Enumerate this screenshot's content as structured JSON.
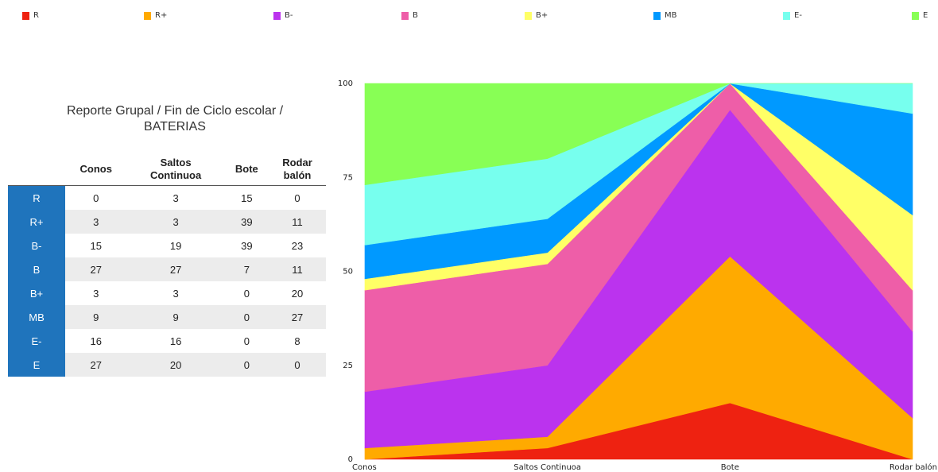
{
  "colors": {
    "R": "#ee2211",
    "R+": "#ffaa00",
    "B-": "#bb33ee",
    "B": "#ee5ea8",
    "B+": "#ffff66",
    "MB": "#0099ff",
    "E-": "#77ffee",
    "E": "#88ff55",
    "row_header_bg": "#1f74bc"
  },
  "legend": [
    "R",
    "R+",
    "B-",
    "B",
    "B+",
    "MB",
    "E-",
    "E"
  ],
  "table": {
    "title_line1": "Reporte Grupal / Fin de Ciclo escolar /",
    "title_line2": "BATERIAS",
    "headers": [
      [
        "Conos"
      ],
      [
        "Saltos",
        "Continuoa"
      ],
      [
        "Bote"
      ],
      [
        "Rodar",
        "balón"
      ]
    ],
    "rows": [
      {
        "label": "R",
        "values": [
          0,
          3,
          15,
          0
        ]
      },
      {
        "label": "R+",
        "values": [
          3,
          3,
          39,
          11
        ]
      },
      {
        "label": "B-",
        "values": [
          15,
          19,
          39,
          23
        ]
      },
      {
        "label": "B",
        "values": [
          27,
          27,
          7,
          11
        ]
      },
      {
        "label": "B+",
        "values": [
          3,
          3,
          0,
          20
        ]
      },
      {
        "label": "MB",
        "values": [
          9,
          9,
          0,
          27
        ]
      },
      {
        "label": "E-",
        "values": [
          16,
          16,
          0,
          8
        ]
      },
      {
        "label": "E",
        "values": [
          27,
          20,
          0,
          0
        ]
      }
    ]
  },
  "chart_data": {
    "type": "area",
    "stacked": true,
    "title": "",
    "xlabel": "",
    "ylabel": "",
    "categories": [
      "Conos",
      "Saltos Continuoa",
      "Bote",
      "Rodar balón"
    ],
    "ylim": [
      0,
      100
    ],
    "yticks": [
      0,
      25,
      50,
      75,
      100
    ],
    "grid": false,
    "legend_position": "top",
    "series": [
      {
        "name": "R",
        "values": [
          0,
          3,
          15,
          0
        ]
      },
      {
        "name": "R+",
        "values": [
          3,
          3,
          39,
          11
        ]
      },
      {
        "name": "B-",
        "values": [
          15,
          19,
          39,
          23
        ]
      },
      {
        "name": "B",
        "values": [
          27,
          27,
          7,
          11
        ]
      },
      {
        "name": "B+",
        "values": [
          3,
          3,
          0,
          20
        ]
      },
      {
        "name": "MB",
        "values": [
          9,
          9,
          0,
          27
        ]
      },
      {
        "name": "E-",
        "values": [
          16,
          16,
          0,
          8
        ]
      },
      {
        "name": "E",
        "values": [
          27,
          20,
          0,
          0
        ]
      }
    ]
  }
}
